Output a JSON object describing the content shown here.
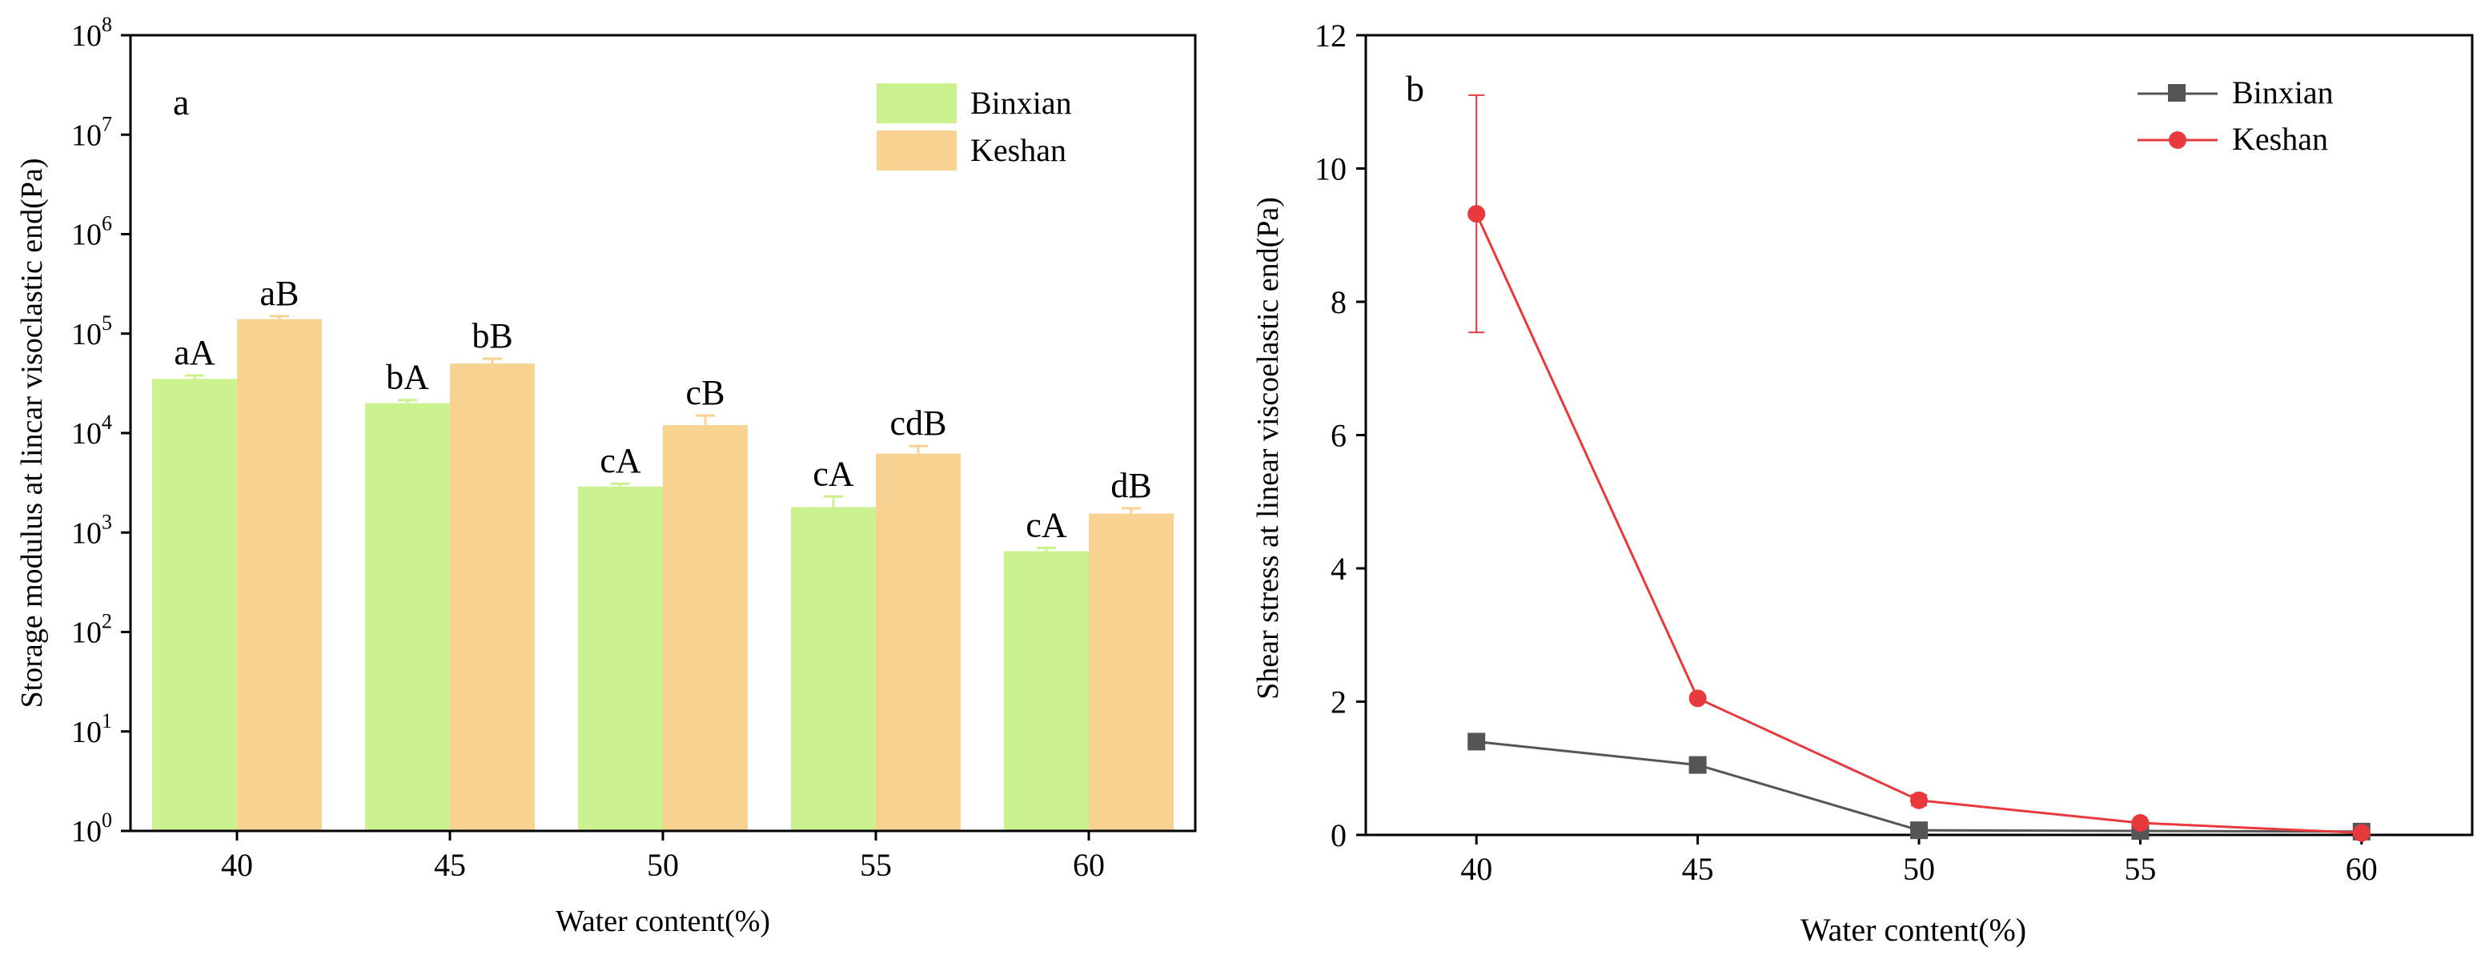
{
  "chart_data": [
    {
      "panel": "a",
      "type": "bar",
      "scale": "log",
      "categories": [
        "40",
        "45",
        "50",
        "55",
        "60"
      ],
      "xlabel": "Water content(%)",
      "ylabel": "Storage modulus at lincar visoclastic end(Pa)",
      "ylim": [
        1,
        100000000
      ],
      "yticks": [
        {
          "base": "10",
          "exp": "0"
        },
        {
          "base": "10",
          "exp": "1"
        },
        {
          "base": "10",
          "exp": "2"
        },
        {
          "base": "10",
          "exp": "3"
        },
        {
          "base": "10",
          "exp": "4"
        },
        {
          "base": "10",
          "exp": "5"
        },
        {
          "base": "10",
          "exp": "6"
        },
        {
          "base": "10",
          "exp": "7"
        },
        {
          "base": "10",
          "exp": "8"
        }
      ],
      "legend_position": "top-right",
      "series": [
        {
          "name": "Binxian",
          "color": "#ccf28f",
          "values": [
            35000,
            20000,
            2900,
            1800,
            650
          ],
          "errors": [
            3000,
            1500,
            200,
            500,
            50
          ],
          "labels": [
            "aA",
            "bA",
            "cA",
            "cA",
            "cA"
          ]
        },
        {
          "name": "Keshan",
          "color": "#f7d291",
          "values": [
            140000,
            50000,
            12000,
            6200,
            1550
          ],
          "errors": [
            10000,
            6000,
            3000,
            1200,
            200
          ],
          "labels": [
            "aB",
            "bB",
            "cB",
            "cdB",
            "dB"
          ]
        }
      ]
    },
    {
      "panel": "b",
      "type": "line",
      "x": [
        40,
        45,
        50,
        55,
        60
      ],
      "xticks": [
        "40",
        "45",
        "50",
        "55",
        "60"
      ],
      "xlim": [
        37.5,
        62.5
      ],
      "xlabel": "Water content(%)",
      "ylabel": "Shear stress at linear viscoelastic end(Pa)",
      "ylim": [
        0,
        12
      ],
      "yticks": [
        "0",
        "2",
        "4",
        "6",
        "8",
        "10",
        "12"
      ],
      "legend_position": "top-right",
      "series": [
        {
          "name": "Binxian",
          "color": "#555555",
          "marker": "square",
          "values": [
            1.4,
            1.05,
            0.07,
            0.06,
            0.05
          ]
        },
        {
          "name": "Keshan",
          "color": "#e8393c",
          "marker": "circle",
          "values": [
            9.32,
            2.05,
            0.52,
            0.18,
            0.03
          ],
          "errors": [
            1.78,
            0.05,
            0.08,
            0.03,
            0.02
          ]
        }
      ]
    }
  ]
}
